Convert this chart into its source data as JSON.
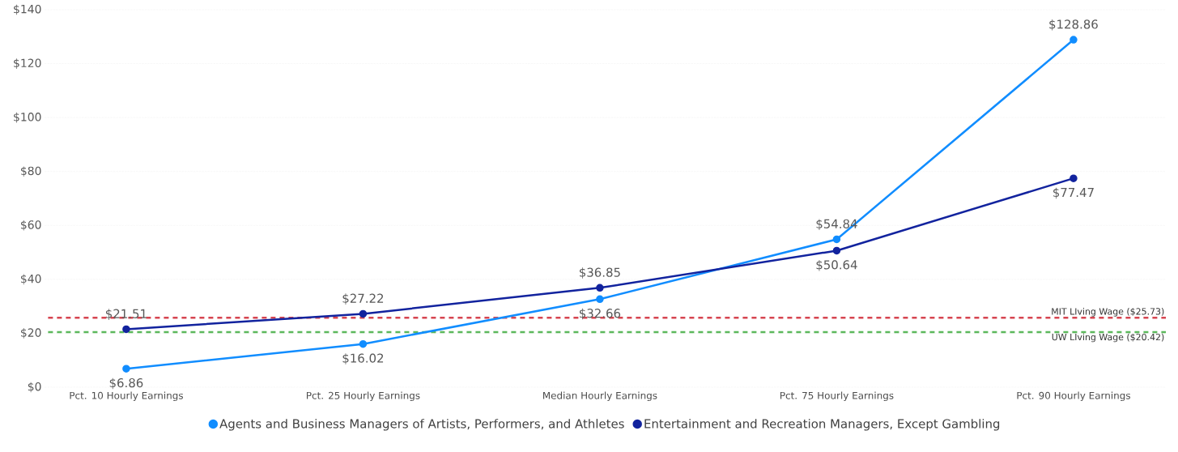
{
  "chart_data": {
    "type": "line",
    "categories": [
      "Pct. 10 Hourly Earnings",
      "Pct. 25 Hourly Earnings",
      "Median Hourly Earnings",
      "Pct. 75 Hourly Earnings",
      "Pct. 90 Hourly Earnings"
    ],
    "series": [
      {
        "name": "Agents and Business Managers of Artists, Performers, and Athletes",
        "color": "#118dff",
        "values": [
          6.86,
          16.02,
          32.66,
          54.84,
          128.86
        ],
        "value_labels": [
          "$6.86",
          "$16.02",
          "$32.66",
          "$54.84",
          "$128.86"
        ]
      },
      {
        "name": "Entertainment and Recreation Managers, Except Gambling",
        "color": "#12239e",
        "values": [
          21.51,
          27.22,
          36.85,
          50.64,
          77.47
        ],
        "value_labels": [
          "$21.51",
          "$27.22",
          "$36.85",
          "$50.64",
          "$77.47"
        ]
      }
    ],
    "ylim": [
      0,
      140
    ],
    "yticks": [
      {
        "value": 0,
        "label": "$0"
      },
      {
        "value": 20,
        "label": "$20"
      },
      {
        "value": 40,
        "label": "$40"
      },
      {
        "value": 60,
        "label": "$60"
      },
      {
        "value": 80,
        "label": "$80"
      },
      {
        "value": 100,
        "label": "$100"
      },
      {
        "value": 120,
        "label": "$120"
      },
      {
        "value": 140,
        "label": "$140"
      }
    ],
    "grid": "y",
    "legend": "bottom",
    "marker": "circle",
    "line_style": "solid",
    "ref_lines": [
      {
        "axis": "y",
        "value": 25.73,
        "label": "MIT LIving Wage ($25.73)",
        "color": "#d64550",
        "line_style": "dashed"
      },
      {
        "axis": "y",
        "value": 20.42,
        "label": "UW LIving Wage ($20.42)",
        "color": "#5cb85c",
        "line_style": "dashed"
      }
    ]
  }
}
